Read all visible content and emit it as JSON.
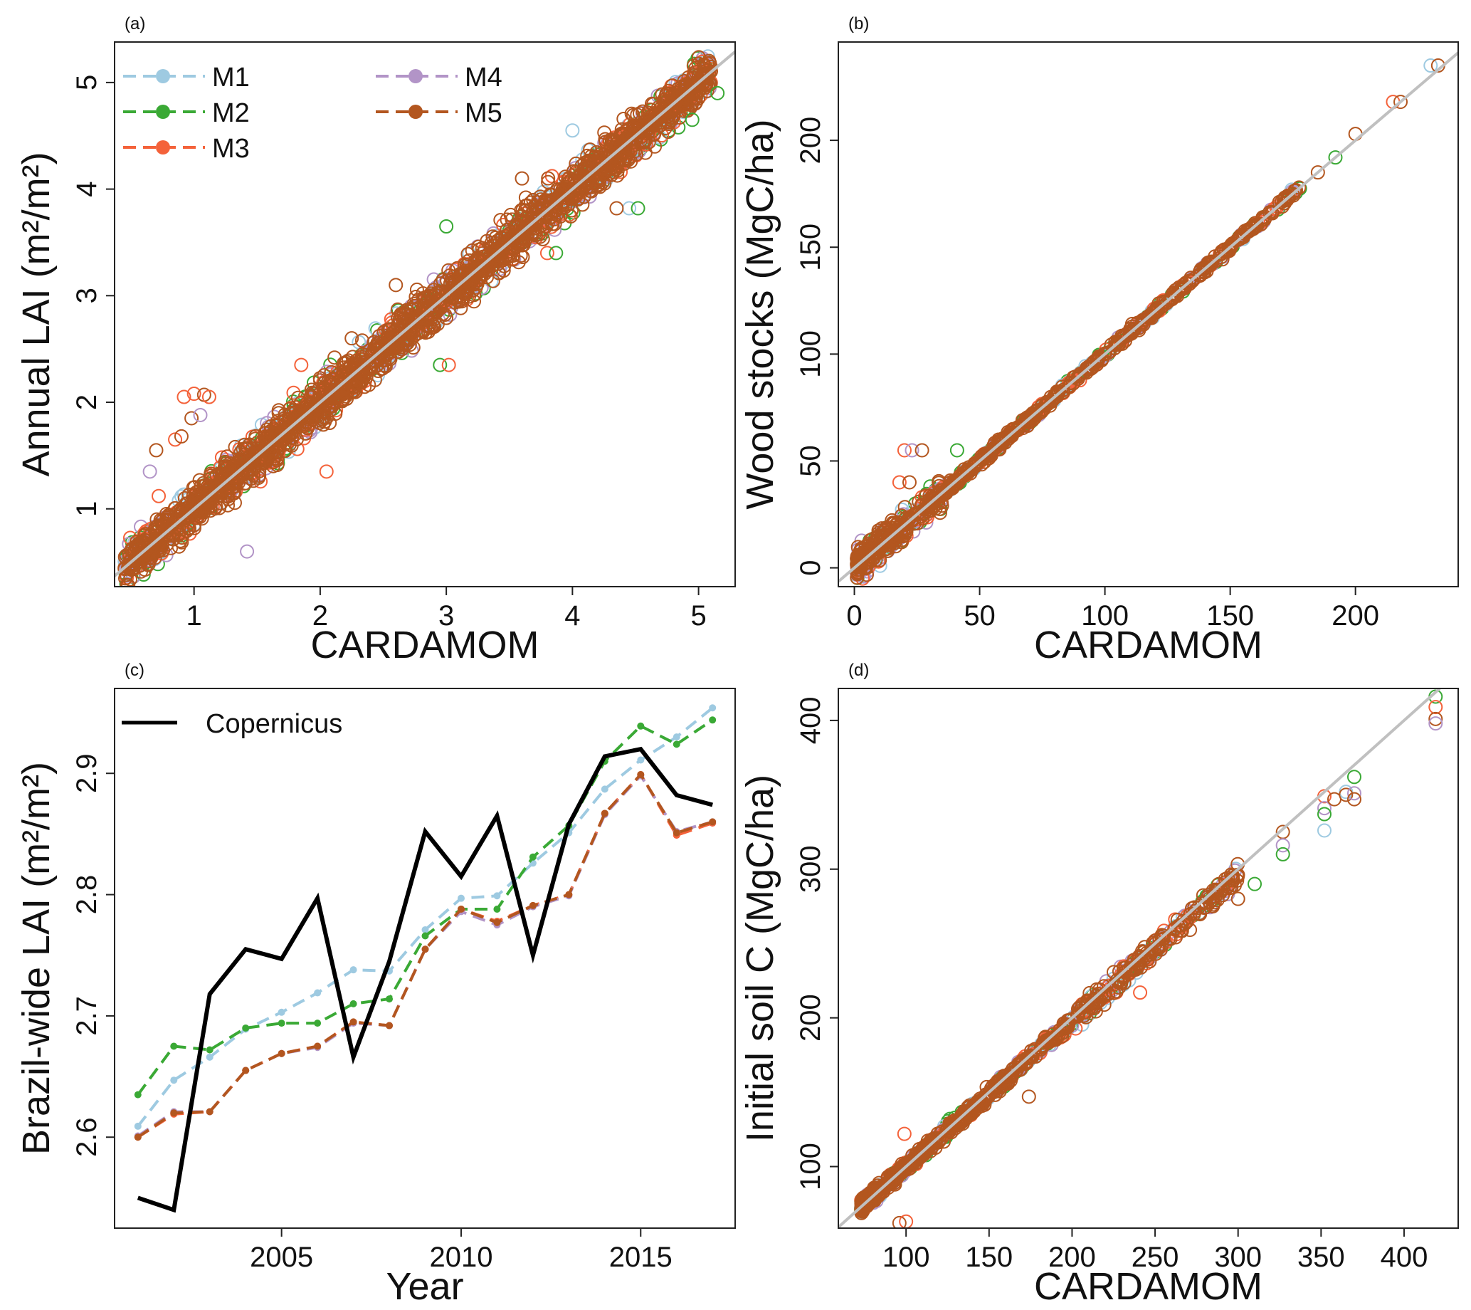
{
  "colors": {
    "M1": "#9ecae1",
    "M2": "#3aa935",
    "M3": "#f4623a",
    "M4": "#b294c7",
    "M5": "#b3561f",
    "Copernicus": "#000000",
    "one_to_one": "#c0c0c0"
  },
  "chart_data": [
    {
      "panel": "(a)",
      "type": "scatter",
      "xlabel": "CARDAMOM",
      "ylabel": "Annual LAI (m²/m²)",
      "xlim": [
        0.37,
        5.29
      ],
      "ylim": [
        0.27,
        5.38
      ],
      "xticks": [
        1,
        2,
        3,
        4,
        5
      ],
      "yticks": [
        1,
        2,
        3,
        4,
        5
      ],
      "grid": false,
      "one_to_one_line": true,
      "legend": {
        "placement": "top-left",
        "entries": [
          "M1",
          "M2",
          "M3",
          "M4",
          "M5"
        ]
      },
      "cloud": {
        "x_range": [
          0.45,
          5.1
        ],
        "description_series": [
          "M1",
          "M2",
          "M3",
          "M4",
          "M5"
        ]
      },
      "outliers": [
        {
          "series": "M3",
          "x": 0.92,
          "y": 2.05
        },
        {
          "series": "M3",
          "x": 1.0,
          "y": 2.08
        },
        {
          "series": "M5",
          "x": 1.08,
          "y": 2.07
        },
        {
          "series": "M3",
          "x": 1.12,
          "y": 2.05
        },
        {
          "series": "M5",
          "x": 0.98,
          "y": 1.85
        },
        {
          "series": "M4",
          "x": 1.05,
          "y": 1.88
        },
        {
          "series": "M3",
          "x": 0.85,
          "y": 1.65
        },
        {
          "series": "M5",
          "x": 0.9,
          "y": 1.68
        },
        {
          "series": "M5",
          "x": 0.7,
          "y": 1.55
        },
        {
          "series": "M4",
          "x": 0.65,
          "y": 1.35
        },
        {
          "series": "M3",
          "x": 0.72,
          "y": 1.12
        },
        {
          "series": "M4",
          "x": 1.42,
          "y": 0.6
        },
        {
          "series": "M3",
          "x": 2.05,
          "y": 1.35
        },
        {
          "series": "M2",
          "x": 2.95,
          "y": 2.35
        },
        {
          "series": "M3",
          "x": 3.02,
          "y": 2.35
        },
        {
          "series": "M3",
          "x": 3.8,
          "y": 3.4
        },
        {
          "series": "M2",
          "x": 3.87,
          "y": 3.4
        },
        {
          "series": "M1",
          "x": 4.45,
          "y": 3.82
        },
        {
          "series": "M2",
          "x": 4.52,
          "y": 3.82
        },
        {
          "series": "M5",
          "x": 4.35,
          "y": 3.82
        },
        {
          "series": "M2",
          "x": 5.15,
          "y": 4.9
        },
        {
          "series": "M2",
          "x": 4.95,
          "y": 4.65
        },
        {
          "series": "M5",
          "x": 2.6,
          "y": 3.1
        },
        {
          "series": "M2",
          "x": 3.0,
          "y": 3.65
        },
        {
          "series": "M5",
          "x": 2.25,
          "y": 2.6
        },
        {
          "series": "M3",
          "x": 1.85,
          "y": 2.35
        },
        {
          "series": "M1",
          "x": 4.0,
          "y": 4.55
        },
        {
          "series": "M5",
          "x": 3.6,
          "y": 4.1
        }
      ]
    },
    {
      "panel": "(b)",
      "type": "scatter",
      "xlabel": "CARDAMOM",
      "ylabel": "Wood stocks (MgC/ha)",
      "xlim": [
        -6.4,
        241
      ],
      "ylim": [
        -8.8,
        246
      ],
      "xticks": [
        0,
        50,
        100,
        150,
        200
      ],
      "yticks": [
        0,
        50,
        100,
        150,
        200
      ],
      "grid": false,
      "one_to_one_line": true,
      "cloud": {
        "x_range": [
          1,
          178
        ]
      },
      "outliers": [
        {
          "series": "M3",
          "x": 20,
          "y": 55
        },
        {
          "series": "M4",
          "x": 23,
          "y": 55
        },
        {
          "series": "M5",
          "x": 27,
          "y": 55
        },
        {
          "series": "M2",
          "x": 41,
          "y": 55
        },
        {
          "series": "M3",
          "x": 18,
          "y": 40
        },
        {
          "series": "M5",
          "x": 22,
          "y": 40
        },
        {
          "series": "M5",
          "x": 185,
          "y": 185
        },
        {
          "series": "M2",
          "x": 192,
          "y": 192
        },
        {
          "series": "M5",
          "x": 200,
          "y": 203
        },
        {
          "series": "M3",
          "x": 215,
          "y": 218
        },
        {
          "series": "M5",
          "x": 218,
          "y": 218
        },
        {
          "series": "M1",
          "x": 230,
          "y": 235
        },
        {
          "series": "M5",
          "x": 233,
          "y": 235
        }
      ]
    },
    {
      "panel": "(c)",
      "type": "line",
      "xlabel": "Year",
      "ylabel": "Brazil-wide LAI (m²/m²)",
      "xlim": [
        2000.35,
        2017.63
      ],
      "ylim": [
        2.525,
        2.97
      ],
      "xticks": [
        2005,
        2010,
        2015
      ],
      "yticks": [
        2.6,
        2.7,
        2.8,
        2.9
      ],
      "grid": false,
      "legend": {
        "placement": "top-left",
        "entries": [
          "Copernicus"
        ]
      },
      "x": [
        2001,
        2002,
        2003,
        2004,
        2005,
        2006,
        2007,
        2008,
        2009,
        2010,
        2011,
        2012,
        2013,
        2014,
        2015,
        2016,
        2017
      ],
      "series": [
        {
          "name": "Copernicus",
          "values": [
            2.55,
            2.54,
            2.718,
            2.755,
            2.747,
            2.797,
            2.666,
            2.745,
            2.852,
            2.815,
            2.865,
            2.75,
            2.858,
            2.914,
            2.92,
            2.882,
            2.874
          ]
        },
        {
          "name": "M1",
          "values": [
            2.609,
            2.647,
            2.666,
            2.689,
            2.703,
            2.719,
            2.738,
            2.737,
            2.771,
            2.797,
            2.799,
            2.826,
            2.851,
            2.887,
            2.911,
            2.93,
            2.954
          ]
        },
        {
          "name": "M2",
          "values": [
            2.635,
            2.675,
            2.672,
            2.69,
            2.694,
            2.694,
            2.71,
            2.714,
            2.766,
            2.788,
            2.788,
            2.831,
            2.857,
            2.91,
            2.939,
            2.924,
            2.944
          ]
        },
        {
          "name": "M3",
          "values": [
            2.6,
            2.619,
            2.621,
            2.655,
            2.669,
            2.675,
            2.695,
            2.692,
            2.755,
            2.788,
            2.778,
            2.791,
            2.8,
            2.867,
            2.899,
            2.849,
            2.859
          ]
        },
        {
          "name": "M4",
          "values": [
            2.601,
            2.621,
            2.621,
            2.655,
            2.669,
            2.674,
            2.694,
            2.692,
            2.755,
            2.786,
            2.775,
            2.79,
            2.799,
            2.866,
            2.898,
            2.852,
            2.86
          ]
        },
        {
          "name": "M5",
          "values": [
            2.6,
            2.62,
            2.621,
            2.655,
            2.669,
            2.675,
            2.695,
            2.692,
            2.755,
            2.788,
            2.777,
            2.791,
            2.8,
            2.867,
            2.899,
            2.851,
            2.86
          ]
        }
      ]
    },
    {
      "panel": "(d)",
      "type": "scatter",
      "xlabel": "CARDAMOM",
      "ylabel": "Initial soil C (MgC/ha)",
      "xlim": [
        59.2,
        432.6
      ],
      "ylim": [
        58.6,
        421.5
      ],
      "xticks": [
        100,
        150,
        200,
        250,
        300,
        350,
        400
      ],
      "yticks": [
        100,
        200,
        300,
        400
      ],
      "grid": false,
      "one_to_one_line": true,
      "cloud": {
        "x_range": [
          73,
          300
        ]
      },
      "outliers": [
        {
          "series": "M3",
          "x": 99,
          "y": 122
        },
        {
          "series": "M5",
          "x": 96,
          "y": 62
        },
        {
          "series": "M3",
          "x": 100,
          "y": 63
        },
        {
          "series": "M4",
          "x": 98,
          "y": 58
        },
        {
          "series": "M3",
          "x": 352,
          "y": 349
        },
        {
          "series": "M4",
          "x": 352,
          "y": 341
        },
        {
          "series": "M2",
          "x": 352,
          "y": 337
        },
        {
          "series": "M1",
          "x": 352,
          "y": 326
        },
        {
          "series": "M5",
          "x": 358,
          "y": 347
        },
        {
          "series": "M1",
          "x": 365,
          "y": 352
        },
        {
          "series": "M5",
          "x": 365,
          "y": 350
        },
        {
          "series": "M2",
          "x": 370,
          "y": 362
        },
        {
          "series": "M4",
          "x": 370,
          "y": 351
        },
        {
          "series": "M5",
          "x": 370,
          "y": 347
        },
        {
          "series": "M5",
          "x": 327,
          "y": 325
        },
        {
          "series": "M4",
          "x": 327,
          "y": 316
        },
        {
          "series": "M2",
          "x": 327,
          "y": 310
        },
        {
          "series": "M2",
          "x": 310,
          "y": 290
        },
        {
          "series": "M5",
          "x": 300,
          "y": 280
        },
        {
          "series": "M2",
          "x": 419,
          "y": 416
        },
        {
          "series": "M3",
          "x": 419,
          "y": 409
        },
        {
          "series": "M5",
          "x": 419,
          "y": 401
        },
        {
          "series": "M4",
          "x": 419,
          "y": 398
        },
        {
          "series": "M5",
          "x": 174,
          "y": 147
        },
        {
          "series": "M3",
          "x": 241,
          "y": 217
        }
      ]
    }
  ]
}
